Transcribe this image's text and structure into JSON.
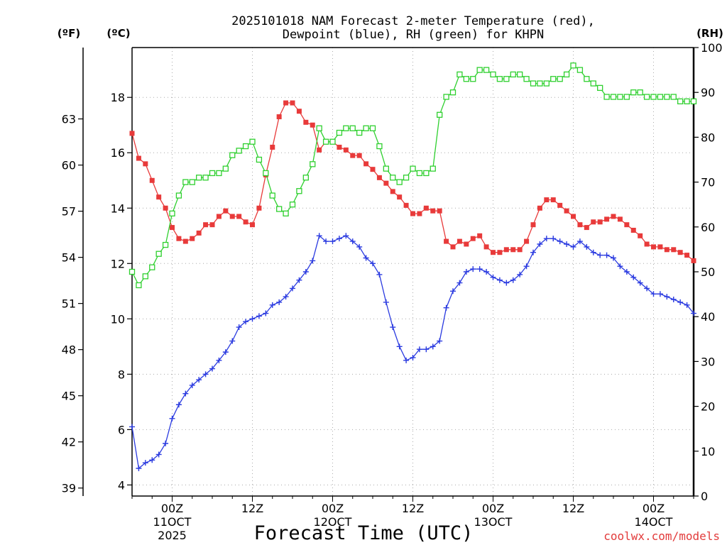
{
  "chart_data": {
    "type": "line",
    "title_line1": "2025101018 NAM Forecast 2-meter Temperature (red),",
    "title_line2": "Dewpoint (blue), RH (green) for KHPN",
    "xlabel": "Forecast Time (UTC)",
    "credit": "coolwx.com/models",
    "units": {
      "left_f": "(ºF)",
      "left_c": "(ºC)",
      "right": "(RH)"
    },
    "colors": {
      "temperature": "#e83a3a",
      "dewpoint": "#2a3ae0",
      "rh": "#2fd02f"
    },
    "x_range_hours": [
      18,
      102
    ],
    "x_ticks": [
      {
        "hour": 24,
        "label": "00Z",
        "sub": "11OCT",
        "sub2": "2025"
      },
      {
        "hour": 36,
        "label": "12Z",
        "sub": "",
        "sub2": ""
      },
      {
        "hour": 48,
        "label": "00Z",
        "sub": "12OCT",
        "sub2": ""
      },
      {
        "hour": 60,
        "label": "12Z",
        "sub": "",
        "sub2": ""
      },
      {
        "hour": 72,
        "label": "00Z",
        "sub": "13OCT",
        "sub2": ""
      },
      {
        "hour": 84,
        "label": "12Z",
        "sub": "",
        "sub2": ""
      },
      {
        "hour": 96,
        "label": "00Z",
        "sub": "14OCT",
        "sub2": ""
      }
    ],
    "celsius_axis": {
      "range": [
        3.6,
        19.8
      ],
      "ticks": [
        "4",
        "6",
        "8",
        "10",
        "12",
        "14",
        "16",
        "18"
      ]
    },
    "fahrenheit_ticks": [
      "39",
      "42",
      "45",
      "48",
      "51",
      "54",
      "57",
      "60",
      "63"
    ],
    "rh_axis": {
      "range": [
        0,
        100
      ],
      "ticks": [
        "0",
        "10",
        "20",
        "30",
        "40",
        "50",
        "60",
        "70",
        "80",
        "90",
        "100"
      ]
    },
    "hours": [
      18,
      19,
      20,
      21,
      22,
      23,
      24,
      25,
      26,
      27,
      28,
      29,
      30,
      31,
      32,
      33,
      34,
      35,
      36,
      37,
      38,
      39,
      40,
      41,
      42,
      43,
      44,
      45,
      46,
      47,
      48,
      49,
      50,
      51,
      52,
      53,
      54,
      55,
      56,
      57,
      58,
      59,
      60,
      61,
      62,
      63,
      64,
      65,
      66,
      67,
      68,
      69,
      70,
      71,
      72,
      73,
      74,
      75,
      76,
      77,
      78,
      79,
      80,
      81,
      82,
      83,
      84,
      85,
      86,
      87,
      88,
      89,
      90,
      91,
      92,
      93,
      94,
      95,
      96,
      97,
      98,
      99,
      100,
      101,
      102
    ],
    "series": [
      {
        "name": "Temperature (C)",
        "values": [
          16.7,
          15.8,
          15.6,
          15.0,
          14.4,
          14.0,
          13.3,
          12.9,
          12.8,
          12.9,
          13.1,
          13.4,
          13.4,
          13.7,
          13.9,
          13.7,
          13.7,
          13.5,
          13.4,
          14.0,
          15.2,
          16.2,
          17.3,
          17.8,
          17.8,
          17.5,
          17.1,
          17.0,
          16.1,
          16.4,
          16.4,
          16.2,
          16.1,
          15.9,
          15.9,
          15.6,
          15.4,
          15.1,
          14.9,
          14.6,
          14.4,
          14.1,
          13.8,
          13.8,
          14.0,
          13.9,
          13.9,
          12.8,
          12.6,
          12.8,
          12.7,
          12.9,
          13.0,
          12.6,
          12.4,
          12.4,
          12.5,
          12.5,
          12.5,
          12.8,
          13.4,
          14.0,
          14.3,
          14.3,
          14.1,
          13.9,
          13.7,
          13.4,
          13.3,
          13.5,
          13.5,
          13.6,
          13.7,
          13.6,
          13.4,
          13.2,
          13.0,
          12.7,
          12.6,
          12.6,
          12.5,
          12.5,
          12.4,
          12.3,
          12.1
        ]
      },
      {
        "name": "Dewpoint (C)",
        "values": [
          6.1,
          4.6,
          4.8,
          4.9,
          5.1,
          5.5,
          6.4,
          6.9,
          7.3,
          7.6,
          7.8,
          8.0,
          8.2,
          8.5,
          8.8,
          9.2,
          9.7,
          9.9,
          10.0,
          10.1,
          10.2,
          10.5,
          10.6,
          10.8,
          11.1,
          11.4,
          11.7,
          12.1,
          13.0,
          12.8,
          12.8,
          12.9,
          13.0,
          12.8,
          12.6,
          12.2,
          12.0,
          11.6,
          10.6,
          9.7,
          9.0,
          8.5,
          8.6,
          8.9,
          8.9,
          9.0,
          9.2,
          10.4,
          11.0,
          11.3,
          11.7,
          11.8,
          11.8,
          11.7,
          11.5,
          11.4,
          11.3,
          11.4,
          11.6,
          11.9,
          12.4,
          12.7,
          12.9,
          12.9,
          12.8,
          12.7,
          12.6,
          12.8,
          12.6,
          12.4,
          12.3,
          12.3,
          12.2,
          11.9,
          11.7,
          11.5,
          11.3,
          11.1,
          10.9,
          10.9,
          10.8,
          10.7,
          10.6,
          10.5,
          10.2
        ]
      },
      {
        "name": "RH (%)",
        "values": [
          50,
          47,
          49,
          51,
          54,
          56,
          63,
          67,
          70,
          70,
          71,
          71,
          72,
          72,
          73,
          76,
          77,
          78,
          79,
          75,
          72,
          67,
          64,
          63,
          65,
          68,
          71,
          74,
          82,
          79,
          79,
          81,
          82,
          82,
          81,
          82,
          82,
          78,
          73,
          71,
          70,
          71,
          73,
          72,
          72,
          73,
          85,
          89,
          90,
          94,
          93,
          93,
          95,
          95,
          94,
          93,
          93,
          94,
          94,
          93,
          92,
          92,
          92,
          93,
          93,
          94,
          96,
          95,
          93,
          92,
          91,
          89,
          89,
          89,
          89,
          90,
          90,
          89,
          89,
          89,
          89,
          89,
          88,
          88,
          88
        ]
      }
    ]
  }
}
